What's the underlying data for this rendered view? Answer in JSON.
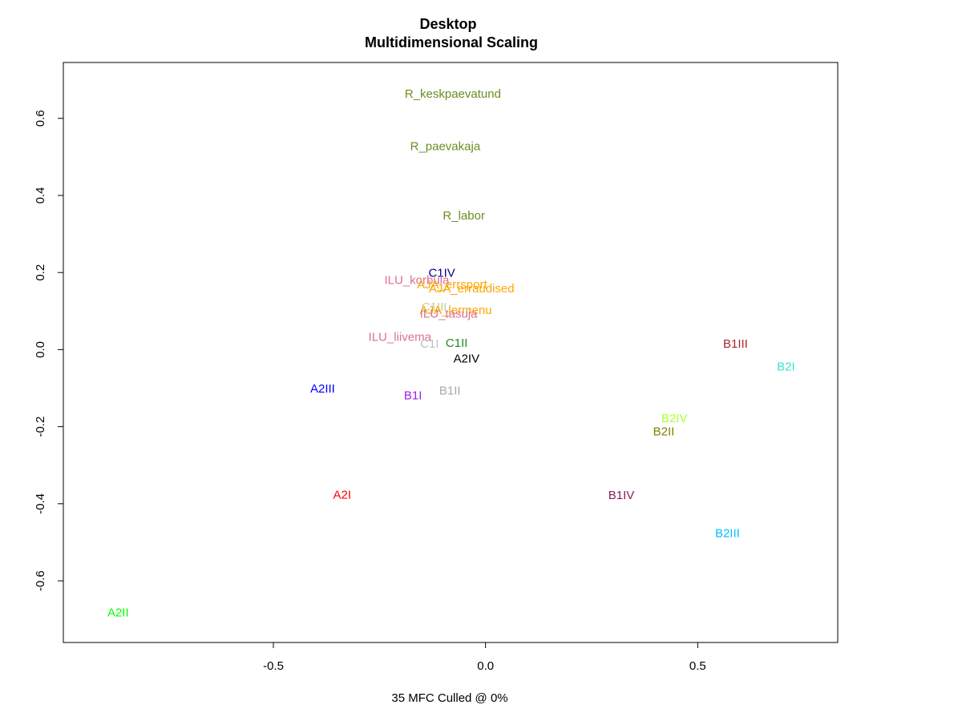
{
  "chart_data": {
    "type": "scatter",
    "title": "Desktop",
    "subtitle": "Multidimensional Scaling",
    "xlabel": "35 MFC  Culled @ 0%",
    "ylabel": "",
    "xlim": [
      -0.995,
      0.83
    ],
    "ylim": [
      -0.76,
      0.745
    ],
    "xticks": [
      -0.5,
      0.0,
      0.5
    ],
    "xtick_labels": [
      "-0.5",
      "0.0",
      "0.5"
    ],
    "yticks": [
      -0.6,
      -0.4,
      -0.2,
      0.0,
      0.2,
      0.4,
      0.6
    ],
    "ytick_labels": [
      "-0.6",
      "-0.4",
      "-0.2",
      "0.0",
      "0.2",
      "0.4",
      "0.6"
    ],
    "grid": false,
    "points": [
      {
        "label": "R_keskpaevatund",
        "x": -0.077,
        "y": 0.663,
        "color": "#6b8e23"
      },
      {
        "label": "R_paevakaja",
        "x": -0.095,
        "y": 0.527,
        "color": "#6b8e23"
      },
      {
        "label": "R_labor",
        "x": -0.051,
        "y": 0.347,
        "color": "#6b8e23"
      },
      {
        "label": "C1IV",
        "x": -0.103,
        "y": 0.198,
        "color": "#00008b"
      },
      {
        "label": "ILU_korbula",
        "x": -0.162,
        "y": 0.18,
        "color": "#db7093"
      },
      {
        "label": "AJA_errsport",
        "x": -0.079,
        "y": 0.168,
        "color": "#ffa500"
      },
      {
        "label": "AJA_erraudised",
        "x": -0.033,
        "y": 0.158,
        "color": "#ffa500"
      },
      {
        "label": "C1III",
        "x": -0.121,
        "y": 0.11,
        "color": "#cccc99"
      },
      {
        "label": "AJA_lermenu",
        "x": -0.07,
        "y": 0.102,
        "color": "#ffa500"
      },
      {
        "label": "ILU_tasuja",
        "x": -0.087,
        "y": 0.092,
        "color": "#db7093"
      },
      {
        "label": "ILU_liivema",
        "x": -0.202,
        "y": 0.032,
        "color": "#db7093"
      },
      {
        "label": "C1I",
        "x": -0.132,
        "y": 0.014,
        "color": "#c0c0c0"
      },
      {
        "label": "C1II",
        "x": -0.068,
        "y": 0.016,
        "color": "#228b22"
      },
      {
        "label": "A2IV",
        "x": -0.045,
        "y": -0.024,
        "color": "#000000"
      },
      {
        "label": "B1III",
        "x": 0.589,
        "y": 0.014,
        "color": "#a52a2a"
      },
      {
        "label": "B2I",
        "x": 0.708,
        "y": -0.045,
        "color": "#40e0d0"
      },
      {
        "label": "A2III",
        "x": -0.384,
        "y": -0.102,
        "color": "#0000ff"
      },
      {
        "label": "B1I",
        "x": -0.171,
        "y": -0.12,
        "color": "#a020f0"
      },
      {
        "label": "B1II",
        "x": -0.084,
        "y": -0.107,
        "color": "#a9a9a9"
      },
      {
        "label": "B2IV",
        "x": 0.445,
        "y": -0.179,
        "color": "#adff2f"
      },
      {
        "label": "B2II",
        "x": 0.42,
        "y": -0.213,
        "color": "#808000"
      },
      {
        "label": "A2I",
        "x": -0.338,
        "y": -0.377,
        "color": "#ff0000"
      },
      {
        "label": "B1IV",
        "x": 0.32,
        "y": -0.379,
        "color": "#8b1c62"
      },
      {
        "label": "B2III",
        "x": 0.57,
        "y": -0.477,
        "color": "#00bfff"
      },
      {
        "label": "A2II",
        "x": -0.866,
        "y": -0.683,
        "color": "#00ff00"
      }
    ]
  }
}
